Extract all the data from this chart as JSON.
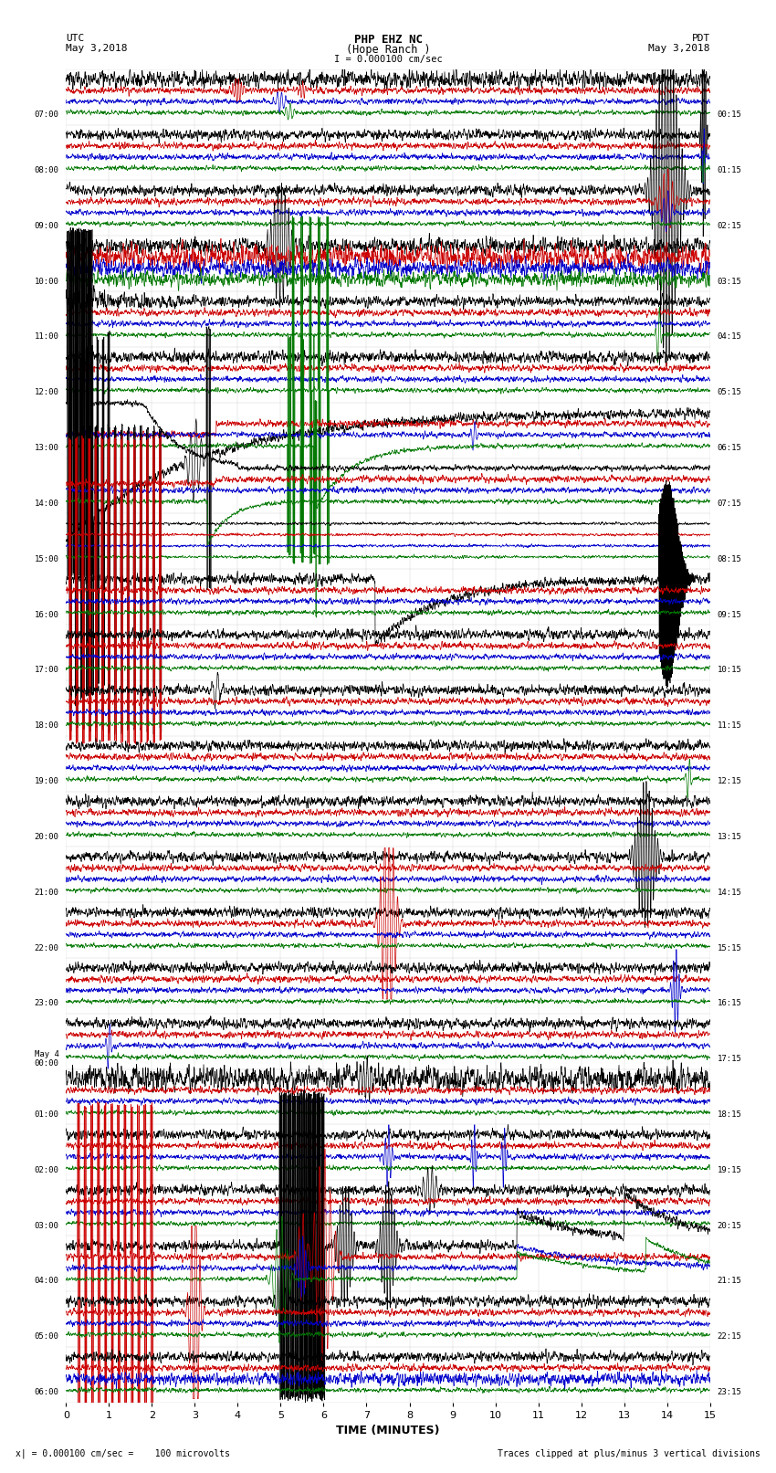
{
  "title_line1": "PHP EHZ NC",
  "title_line2": "(Hope Ranch )",
  "title_scale": "I = 0.000100 cm/sec",
  "left_header_line1": "UTC",
  "left_header_line2": "May 3,2018",
  "right_header_line1": "PDT",
  "right_header_line2": "May 3,2018",
  "footer_left": "x| = 0.000100 cm/sec =    100 microvolts",
  "footer_right": "Traces clipped at plus/minus 3 vertical divisions",
  "xlabel": "TIME (MINUTES)",
  "xmin": 0,
  "xmax": 15,
  "xticks": [
    0,
    1,
    2,
    3,
    4,
    5,
    6,
    7,
    8,
    9,
    10,
    11,
    12,
    13,
    14,
    15
  ],
  "background_color": "#ffffff",
  "trace_colors": [
    "#000000",
    "#cc0000",
    "#0000cc",
    "#007700"
  ],
  "row_labels_left": [
    "07:00",
    "08:00",
    "09:00",
    "10:00",
    "11:00",
    "12:00",
    "13:00",
    "14:00",
    "15:00",
    "16:00",
    "17:00",
    "18:00",
    "19:00",
    "20:00",
    "21:00",
    "22:00",
    "23:00",
    "May 4\n00:00",
    "01:00",
    "02:00",
    "03:00",
    "04:00",
    "05:00",
    "06:00"
  ],
  "row_labels_right": [
    "00:15",
    "01:15",
    "02:15",
    "03:15",
    "04:15",
    "05:15",
    "06:15",
    "07:15",
    "08:15",
    "09:15",
    "10:15",
    "11:15",
    "12:15",
    "13:15",
    "14:15",
    "15:15",
    "16:15",
    "17:15",
    "18:15",
    "19:15",
    "20:15",
    "21:15",
    "22:15",
    "23:15"
  ],
  "num_rows": 24,
  "figsize": [
    8.5,
    16.13
  ],
  "dpi": 100
}
